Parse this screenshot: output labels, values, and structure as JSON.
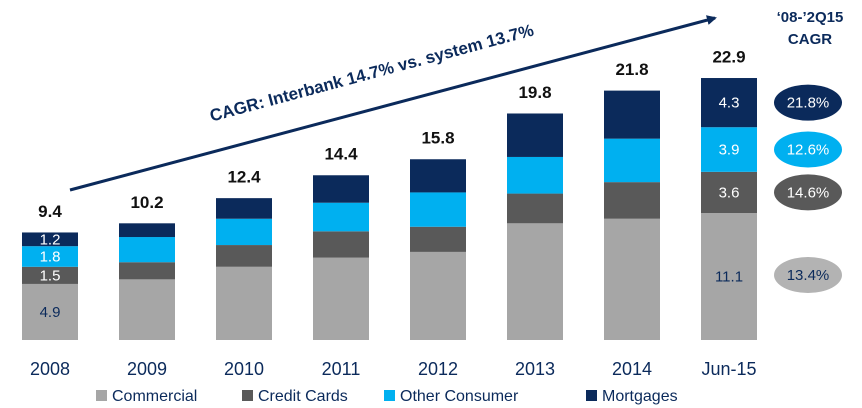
{
  "chart_data": {
    "type": "stacked_bar",
    "annotation": "CAGR: Interbank 14.7%  vs. system 13.7%",
    "cagr_title": [
      "‘08-’2Q15",
      "CAGR"
    ],
    "categories": [
      "2008",
      "2009",
      "2010",
      "2011",
      "2012",
      "2013",
      "2014",
      "Jun-15"
    ],
    "totals": [
      9.4,
      10.2,
      12.4,
      14.4,
      15.8,
      19.8,
      21.8,
      22.9
    ],
    "ylim": [
      0,
      25
    ],
    "grid": false,
    "series": [
      {
        "name": "Commercial",
        "color": "#a6a6a6",
        "label_color": "#0b2a5b",
        "values": [
          4.9,
          5.3,
          6.4,
          7.2,
          7.7,
          10.2,
          10.6,
          11.1
        ],
        "value_labels": [
          "4.9",
          null,
          null,
          null,
          null,
          null,
          null,
          "11.1"
        ],
        "cagr": 13.4,
        "cagr_label": "13.4%",
        "cagr_color": "#b3b3b3",
        "cagr_text_color": "#0b2a5b"
      },
      {
        "name": "Credit Cards",
        "color": "#595959",
        "label_color": "#ffffff",
        "values": [
          1.5,
          1.5,
          1.9,
          2.3,
          2.2,
          2.6,
          3.2,
          3.6
        ],
        "value_labels": [
          "1.5",
          null,
          null,
          null,
          null,
          null,
          null,
          "3.6"
        ],
        "cagr": 14.6,
        "cagr_label": "14.6%",
        "cagr_color": "#595959",
        "cagr_text_color": "#ffffff"
      },
      {
        "name": "Other Consumer",
        "color": "#00b0f0",
        "label_color": "#ffffff",
        "values": [
          1.8,
          2.2,
          2.3,
          2.5,
          3.0,
          3.2,
          3.8,
          3.9
        ],
        "value_labels": [
          "1.8",
          null,
          null,
          null,
          null,
          null,
          null,
          "3.9"
        ],
        "cagr": 12.6,
        "cagr_label": "12.6%",
        "cagr_color": "#00b0f0",
        "cagr_text_color": "#ffffff"
      },
      {
        "name": "Mortgages",
        "color": "#0b2a5b",
        "label_color": "#ffffff",
        "values": [
          1.2,
          1.2,
          1.8,
          2.4,
          2.9,
          3.8,
          4.2,
          4.3
        ],
        "value_labels": [
          "1.2",
          null,
          null,
          null,
          null,
          null,
          null,
          "4.3"
        ],
        "cagr": 21.8,
        "cagr_label": "21.8%",
        "cagr_color": "#0b2a5b",
        "cagr_text_color": "#ffffff"
      }
    ]
  }
}
